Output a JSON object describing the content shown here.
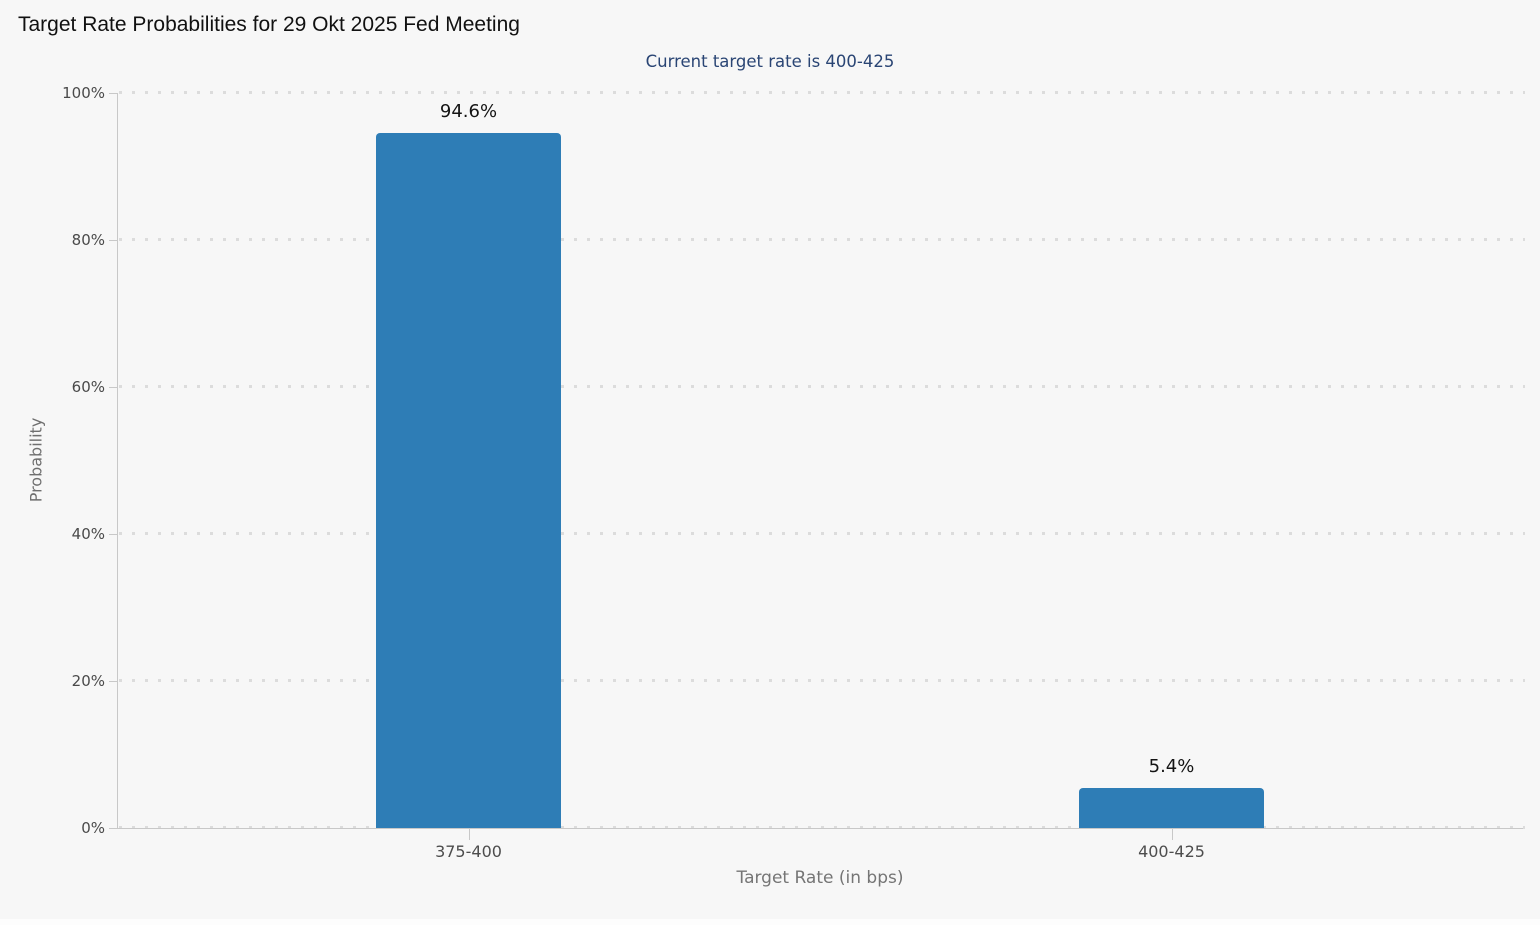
{
  "page": {
    "background": "#f7f7f7"
  },
  "colors": {
    "bar": "#2e7db6",
    "title_text": "#111111",
    "subtitle_text": "#2a4574",
    "axis_line": "#c8c8c8",
    "grid_dot": "#dcdcdc",
    "tick_label": "#4a4a4a",
    "axis_title": "#757575",
    "value_label": "#141414"
  },
  "chart_data": {
    "type": "bar",
    "title": "Target Rate Probabilities for 29 Okt 2025 Fed Meeting",
    "subtitle": "Current target rate is 400-425",
    "categories": [
      "375-400",
      "400-425"
    ],
    "values": [
      94.6,
      5.4
    ],
    "value_labels": [
      "94.6%",
      "5.4%"
    ],
    "xlabel": "Target Rate (in bps)",
    "ylabel": "Probability",
    "ylim": [
      0,
      100
    ],
    "yticks": [
      0,
      20,
      40,
      60,
      80,
      100
    ],
    "ytick_labels": [
      "0%",
      "20%",
      "40%",
      "60%",
      "80%",
      "100%"
    ],
    "grid": "horizontal-dotted",
    "legend": "none"
  }
}
